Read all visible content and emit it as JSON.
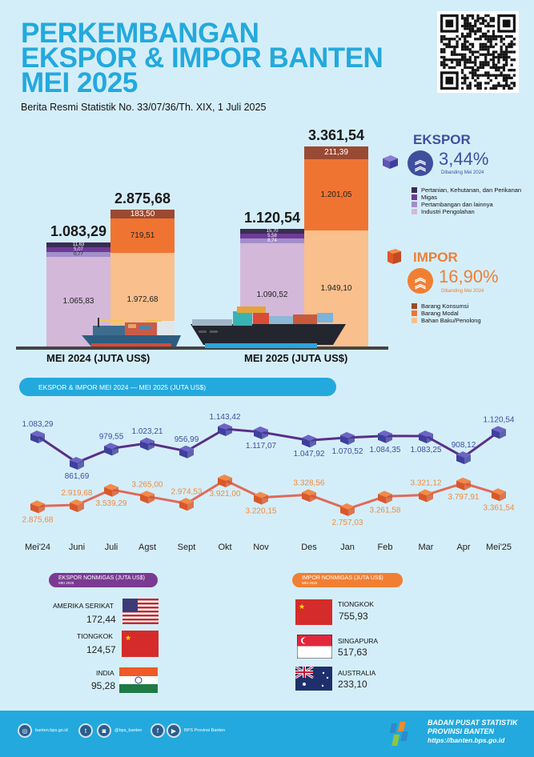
{
  "header": {
    "title_line1": "PERKEMBANGAN",
    "title_line2": "EKSPOR & IMPOR BANTEN",
    "title_line3": "MEI 2025",
    "subtitle": "Berita Resmi Statistik No. 33/07/36/Th. XIX, 1 Juli 2025",
    "qr_icon": "qr-code-icon"
  },
  "colors": {
    "accent": "#23a9dd",
    "ekspor": "#3f4f9e",
    "impor": "#f07f33",
    "ekspor_line": "#5a2f86",
    "impor_line": "#e06a5a"
  },
  "chart_data": [
    {
      "type": "bar",
      "title": "Ekspor & Impor Banten (Juta US$)",
      "categories": [
        "MEI 2024 (JUTA US$)",
        "MEI 2025 (JUTA US$)"
      ],
      "groups": [
        {
          "name": "Ekspor",
          "totals": [
            "1.083,29",
            "1.120,54"
          ],
          "series": [
            {
              "name": "Industri Pengolahan",
              "color": "#d4b8da",
              "values": [
                1065.83,
                1090.52
              ],
              "labels": [
                "1.065,83",
                "1.090,52"
              ]
            },
            {
              "name": "Pertambangan dan lainnya",
              "color": "#a18fc9",
              "values": [
                0.77,
                8.74
              ],
              "labels": [
                "0,77",
                "8,74"
              ]
            },
            {
              "name": "Migas",
              "color": "#6f3a96",
              "values": [
                5.07,
                5.58
              ],
              "labels": [
                "5,07",
                "5,58"
              ]
            },
            {
              "name": "Pertanian, Kehutanan, dan Perikanan",
              "color": "#3a2d55",
              "values": [
                11.63,
                15.7
              ],
              "labels": [
                "11,63",
                "15,70"
              ]
            }
          ]
        },
        {
          "name": "Impor",
          "totals": [
            "2.875,68",
            "3.361,54"
          ],
          "series": [
            {
              "name": "Bahan Baku/Penolong",
              "color": "#f9bf8c",
              "values": [
                1972.68,
                1949.1
              ],
              "labels": [
                "1.972,68",
                "1.949,10"
              ]
            },
            {
              "name": "Barang Modal",
              "color": "#f07431",
              "values": [
                719.51,
                1201.05
              ],
              "labels": [
                "719,51",
                "1.201,05"
              ]
            },
            {
              "name": "Barang Konsumsi",
              "color": "#9a4a32",
              "values": [
                183.5,
                211.39
              ],
              "labels": [
                "183,50",
                "211,39"
              ]
            }
          ]
        }
      ]
    },
    {
      "type": "line",
      "title": "EKSPOR & IMPOR MEI 2024 — MEI 2025 (JUTA US$)",
      "x": [
        "Mei'24",
        "Juni",
        "Juli",
        "Agst",
        "Sept",
        "Okt",
        "Nov",
        "Des",
        "Jan",
        "Feb",
        "Mar",
        "Apr",
        "Mei'25"
      ],
      "series": [
        {
          "name": "Ekspor",
          "values": [
            1083.29,
            861.69,
            979.55,
            1023.21,
            956.99,
            1143.42,
            1117.07,
            1047.92,
            1070.52,
            1084.35,
            1083.25,
            908.12,
            1120.54
          ],
          "labels": [
            "1.083,29",
            "861,69",
            "979,55",
            "1.023,21",
            "956,99",
            "1.143,42",
            "1.117,07",
            "1.047,92",
            "1.070,52",
            "1.084,35",
            "1.083,25",
            "908,12",
            "1.120,54"
          ]
        },
        {
          "name": "Impor",
          "values": [
            2875.68,
            2919.68,
            3539.29,
            3265.0,
            2974.53,
            3921.0,
            3220.15,
            3328.56,
            2757.03,
            3261.58,
            3321.12,
            3797.91,
            3361.54
          ],
          "labels": [
            "2.875,68",
            "2.919,68",
            "3.539,29",
            "3.265,00",
            "2.974,53",
            "3.921,00",
            "3.220,15",
            "3.328,56",
            "2.757,03",
            "3.261,58",
            "3.321,12",
            "3.797,91",
            "3.361,54"
          ]
        }
      ],
      "grid": false,
      "legend": "none"
    }
  ],
  "ekspor_panel": {
    "title": "EKSPOR",
    "change": "3,44%",
    "compare": "Dibanding Mei 2024",
    "legend": [
      "Pertanian, Kehutanan, dan Perikanan",
      "Migas",
      "Pertambangan dan lainnya",
      "Industri Pengolahan"
    ]
  },
  "impor_panel": {
    "title": "IMPOR",
    "change": "16,90%",
    "compare": "Dibanding Mei 2024",
    "legend": [
      "Barang Konsumsi",
      "Barang Modal",
      "Bahan Baku/Penolong"
    ]
  },
  "bar_labels": {
    "period1": "MEI 2024 (JUTA US$)",
    "period2": "MEI 2025 (JUTA US$)"
  },
  "line_section": {
    "title": "EKSPOR & IMPOR MEI 2024 — MEI 2025 (JUTA US$)"
  },
  "ekspor_nonmigas": {
    "title": "EKSPOR NONMIGAS (JUTA US$)",
    "subtitle": "MEI 2025",
    "countries": [
      {
        "name": "AMERIKA SERIKAT",
        "value": "172,44",
        "flag": "usa-flag"
      },
      {
        "name": "TIONGKOK",
        "value": "124,57",
        "flag": "china-flag"
      },
      {
        "name": "INDIA",
        "value": "95,28",
        "flag": "india-flag"
      }
    ]
  },
  "impor_nonmigas": {
    "title": "IMPOR NONMIGAS  (JUTA US$)",
    "subtitle": "MEI 2025",
    "countries": [
      {
        "name": "TIONGKOK",
        "value": "755,93",
        "flag": "china-flag"
      },
      {
        "name": "SINGAPURA",
        "value": "517,63",
        "flag": "singapore-flag"
      },
      {
        "name": "AUSTRALIA",
        "value": "233,10",
        "flag": "australia-flag"
      }
    ]
  },
  "footer": {
    "website": "banten.bps.go.id",
    "social_handle": "@bps_banten",
    "fb_yt": "BPS Provinsi Banten",
    "org_line1": "BADAN PUSAT STATISTIK",
    "org_line2": "PROVINSI BANTEN",
    "org_url": "https://banten.bps.go.id"
  }
}
